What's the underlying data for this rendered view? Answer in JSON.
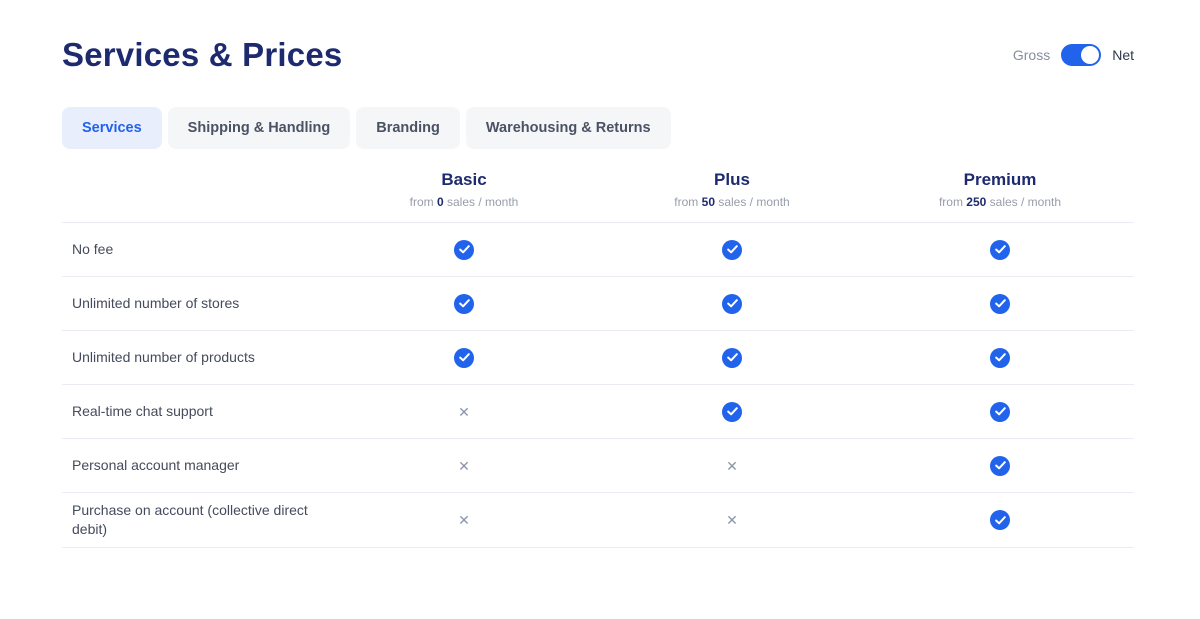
{
  "page": {
    "title": "Services & Prices"
  },
  "toggle": {
    "left_label": "Gross",
    "right_label": "Net",
    "state": "net"
  },
  "tabs": [
    {
      "label": "Services",
      "active": true
    },
    {
      "label": "Shipping & Handling",
      "active": false
    },
    {
      "label": "Branding",
      "active": false
    },
    {
      "label": "Warehousing & Returns",
      "active": false
    }
  ],
  "plans": [
    {
      "name": "Basic",
      "sub_prefix": "from",
      "sales_threshold": "0",
      "sub_suffix": "sales / month"
    },
    {
      "name": "Plus",
      "sub_prefix": "from",
      "sales_threshold": "50",
      "sub_suffix": "sales / month"
    },
    {
      "name": "Premium",
      "sub_prefix": "from",
      "sales_threshold": "250",
      "sub_suffix": "sales / month"
    }
  ],
  "features": [
    {
      "label": "No fee",
      "values": [
        true,
        true,
        true
      ]
    },
    {
      "label": "Unlimited number of stores",
      "values": [
        true,
        true,
        true
      ]
    },
    {
      "label": "Unlimited number of products",
      "values": [
        true,
        true,
        true
      ]
    },
    {
      "label": "Real-time chat support",
      "values": [
        false,
        true,
        true
      ]
    },
    {
      "label": "Personal account manager",
      "values": [
        false,
        false,
        true
      ]
    },
    {
      "label": "Purchase on account (collective direct debit)",
      "values": [
        false,
        false,
        true
      ]
    }
  ],
  "icons": {
    "check_icon": "check-in-blue-circle",
    "cross_glyph": "✕"
  },
  "theme": {
    "title_color": "#1e2a6e",
    "accent_color": "#2163ea",
    "active_tab_bg": "#e8eefb",
    "inactive_tab_bg": "#f5f6f8",
    "divider_color": "#e9ecf2",
    "cross_color": "#8d95aa"
  }
}
